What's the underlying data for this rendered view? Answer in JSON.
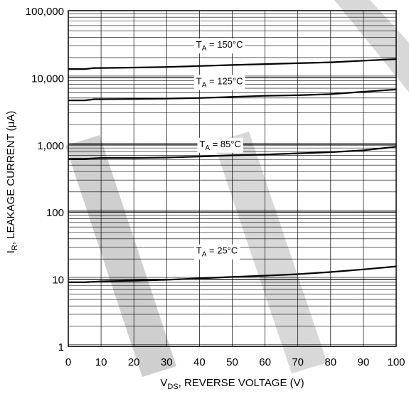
{
  "chart_data": {
    "type": "line",
    "xlabel": {
      "main": "V",
      "sub": "DS",
      "rest": ", REVERSE VOLTAGE (V)"
    },
    "ylabel": {
      "main": "I",
      "sub": "R",
      "rest": ", LEAKAGE CURRENT (μA)"
    },
    "xlim": [
      0,
      100
    ],
    "ylim": [
      1,
      100000
    ],
    "yscale": "log",
    "grid": true,
    "x_ticks": [
      0,
      10,
      20,
      30,
      40,
      50,
      60,
      70,
      80,
      90,
      100
    ],
    "x_tick_labels": [
      "0",
      "10",
      "20",
      "30",
      "40",
      "50",
      "60",
      "70",
      "80",
      "90",
      "100"
    ],
    "y_ticks": [
      1,
      10,
      100,
      1000,
      10000,
      100000
    ],
    "y_tick_labels": [
      "1",
      "10",
      "100",
      "1,000",
      "10,000",
      "100,000"
    ],
    "watermark": "NOT FOR",
    "series": [
      {
        "name": "T_A = 150°C",
        "label_main": "T",
        "label_sub": "A",
        "label_rest": " = 150°C",
        "label_at": [
          39,
          28000
        ],
        "x": [
          0,
          5,
          8,
          10,
          20,
          30,
          40,
          50,
          60,
          70,
          80,
          90,
          100
        ],
        "y": [
          13500,
          13500,
          14000,
          14000,
          14200,
          14500,
          15000,
          15500,
          16000,
          16500,
          17000,
          18000,
          19000
        ]
      },
      {
        "name": "T_A = 125°C",
        "label_main": "T",
        "label_sub": "A",
        "label_rest": " = 125°C",
        "label_at": [
          39,
          8000
        ],
        "x": [
          0,
          5,
          8,
          10,
          20,
          30,
          40,
          50,
          60,
          70,
          80,
          90,
          100
        ],
        "y": [
          4600,
          4600,
          4800,
          4800,
          4850,
          4900,
          5000,
          5200,
          5400,
          5500,
          5700,
          6200,
          6700
        ]
      },
      {
        "name": "T_A = 85°C",
        "label_main": "T",
        "label_sub": "A",
        "label_rest": " = 85°C",
        "label_at": [
          40,
          930
        ],
        "x": [
          0,
          5,
          10,
          20,
          30,
          40,
          50,
          60,
          70,
          80,
          90,
          100
        ],
        "y": [
          620,
          620,
          640,
          640,
          650,
          670,
          700,
          720,
          750,
          780,
          830,
          940
        ]
      },
      {
        "name": "T_A = 25°C",
        "label_main": "T",
        "label_sub": "A",
        "label_rest": " = 25°C",
        "label_at": [
          39,
          24
        ],
        "x": [
          0,
          5,
          10,
          20,
          30,
          40,
          50,
          60,
          70,
          80,
          90,
          100
        ],
        "y": [
          9,
          9,
          9.3,
          9.5,
          9.8,
          10.3,
          10.8,
          11.3,
          11.9,
          12.8,
          14,
          15.5
        ]
      }
    ]
  }
}
